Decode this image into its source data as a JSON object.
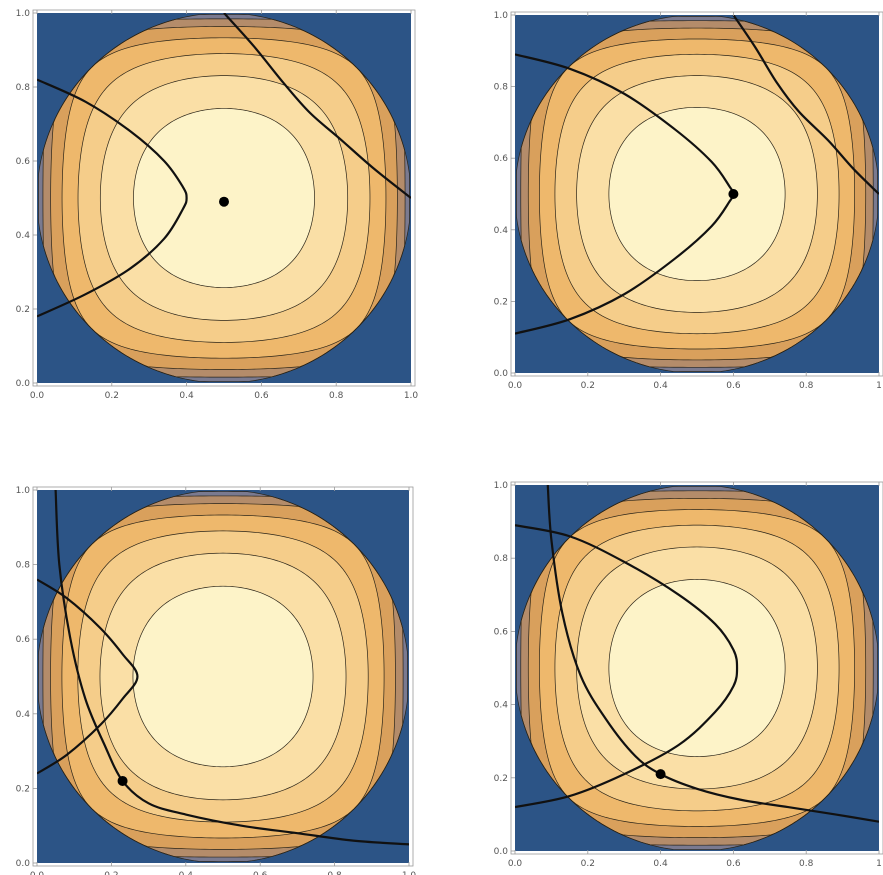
{
  "figure": {
    "colors": {
      "background": "#2c5486",
      "levels": [
        "#7a7a90",
        "#b48c6a",
        "#d9a05c",
        "#eeb86c",
        "#f5cd8a",
        "#fadfa6",
        "#fdf3c8"
      ],
      "contour_line": "#2a2418",
      "curve": "#111111",
      "point": "#000000"
    }
  },
  "chart_data": [
    {
      "type": "contour",
      "xlim": [
        0,
        1
      ],
      "ylim": [
        0,
        1
      ],
      "x_ticks": [
        "0.0",
        "0.2",
        "0.4",
        "0.6",
        "0.8",
        "1.0"
      ],
      "y_ticks": [
        "0.0",
        "0.2",
        "0.4",
        "0.6",
        "0.8",
        "1.0"
      ],
      "grid": false,
      "contour_levels": [
        0.125,
        0.25,
        0.375,
        0.5,
        0.625,
        0.75,
        0.875
      ],
      "curves": [
        {
          "points": [
            [
              0.0,
              0.82
            ],
            [
              0.13,
              0.76
            ],
            [
              0.25,
              0.68
            ],
            [
              0.34,
              0.6
            ],
            [
              0.39,
              0.53
            ],
            [
              0.4,
              0.5
            ],
            [
              0.39,
              0.47
            ],
            [
              0.34,
              0.39
            ],
            [
              0.25,
              0.31
            ],
            [
              0.13,
              0.24
            ],
            [
              0.0,
              0.18
            ]
          ]
        },
        {
          "points": [
            [
              0.5,
              1.0
            ],
            [
              0.58,
              0.91
            ],
            [
              0.66,
              0.81
            ],
            [
              0.73,
              0.73
            ],
            [
              0.81,
              0.66
            ],
            [
              0.9,
              0.58
            ],
            [
              1.0,
              0.5
            ]
          ]
        }
      ],
      "marked_point": [
        0.5,
        0.49
      ]
    },
    {
      "type": "contour",
      "xlim": [
        0,
        1
      ],
      "ylim": [
        0,
        1
      ],
      "x_ticks": [
        "0.0",
        "0.2",
        "0.4",
        "0.6",
        "0.8",
        "1"
      ],
      "y_ticks": [
        "0.0",
        "0.2",
        "0.4",
        "0.6",
        "0.8",
        "1.0"
      ],
      "grid": false,
      "contour_levels": [
        0.125,
        0.25,
        0.375,
        0.5,
        0.625,
        0.75,
        0.875
      ],
      "curves": [
        {
          "points": [
            [
              0.0,
              0.89
            ],
            [
              0.15,
              0.85
            ],
            [
              0.3,
              0.78
            ],
            [
              0.44,
              0.68
            ],
            [
              0.54,
              0.59
            ],
            [
              0.59,
              0.52
            ],
            [
              0.6,
              0.5
            ],
            [
              0.59,
              0.48
            ],
            [
              0.54,
              0.41
            ],
            [
              0.44,
              0.32
            ],
            [
              0.3,
              0.22
            ],
            [
              0.15,
              0.15
            ],
            [
              0.0,
              0.11
            ]
          ]
        },
        {
          "points": [
            [
              0.6,
              1.0
            ],
            [
              0.66,
              0.91
            ],
            [
              0.72,
              0.81
            ],
            [
              0.78,
              0.73
            ],
            [
              0.86,
              0.65
            ],
            [
              0.93,
              0.57
            ],
            [
              1.0,
              0.5
            ]
          ]
        }
      ],
      "marked_point": [
        0.6,
        0.5
      ]
    },
    {
      "type": "contour",
      "xlim": [
        0,
        1
      ],
      "ylim": [
        0,
        1
      ],
      "x_ticks": [
        "0.0",
        "0.2",
        "0.4",
        "0.6",
        "0.8",
        "1.0"
      ],
      "y_ticks": [
        "0.0",
        "0.2",
        "0.4",
        "0.6",
        "0.8",
        "1.0"
      ],
      "grid": false,
      "contour_levels": [
        0.125,
        0.25,
        0.375,
        0.5,
        0.625,
        0.75,
        0.875
      ],
      "curves": [
        {
          "points": [
            [
              0.0,
              0.76
            ],
            [
              0.08,
              0.71
            ],
            [
              0.17,
              0.63
            ],
            [
              0.23,
              0.56
            ],
            [
              0.27,
              0.5
            ],
            [
              0.23,
              0.44
            ],
            [
              0.17,
              0.37
            ],
            [
              0.08,
              0.29
            ],
            [
              0.0,
              0.24
            ]
          ]
        },
        {
          "points": [
            [
              0.05,
              1.0
            ],
            [
              0.06,
              0.8
            ],
            [
              0.09,
              0.6
            ],
            [
              0.13,
              0.44
            ],
            [
              0.18,
              0.32
            ],
            [
              0.23,
              0.22
            ],
            [
              0.3,
              0.16
            ],
            [
              0.4,
              0.13
            ],
            [
              0.55,
              0.1
            ],
            [
              0.7,
              0.08
            ],
            [
              0.85,
              0.06
            ],
            [
              1.0,
              0.05
            ]
          ]
        }
      ],
      "marked_point": [
        0.23,
        0.22
      ]
    },
    {
      "type": "contour",
      "xlim": [
        0,
        1
      ],
      "ylim": [
        0,
        1
      ],
      "x_ticks": [
        "0.0",
        "0.2",
        "0.4",
        "0.6",
        "0.8",
        "1"
      ],
      "y_ticks": [
        "0.0",
        "0.2",
        "0.4",
        "0.6",
        "0.8",
        "1.0"
      ],
      "grid": false,
      "contour_levels": [
        0.125,
        0.25,
        0.375,
        0.5,
        0.625,
        0.75,
        0.875
      ],
      "curves": [
        {
          "points": [
            [
              0.0,
              0.89
            ],
            [
              0.15,
              0.86
            ],
            [
              0.3,
              0.79
            ],
            [
              0.45,
              0.7
            ],
            [
              0.55,
              0.62
            ],
            [
              0.6,
              0.55
            ],
            [
              0.61,
              0.5
            ],
            [
              0.6,
              0.45
            ],
            [
              0.55,
              0.38
            ],
            [
              0.45,
              0.29
            ],
            [
              0.3,
              0.21
            ],
            [
              0.15,
              0.15
            ],
            [
              0.0,
              0.12
            ]
          ]
        },
        {
          "points": [
            [
              0.09,
              1.0
            ],
            [
              0.1,
              0.85
            ],
            [
              0.13,
              0.65
            ],
            [
              0.18,
              0.48
            ],
            [
              0.25,
              0.36
            ],
            [
              0.33,
              0.26
            ],
            [
              0.4,
              0.21
            ],
            [
              0.5,
              0.17
            ],
            [
              0.62,
              0.14
            ],
            [
              0.75,
              0.12
            ],
            [
              0.88,
              0.1
            ],
            [
              1.0,
              0.08
            ]
          ]
        }
      ],
      "marked_point": [
        0.4,
        0.21
      ]
    }
  ]
}
